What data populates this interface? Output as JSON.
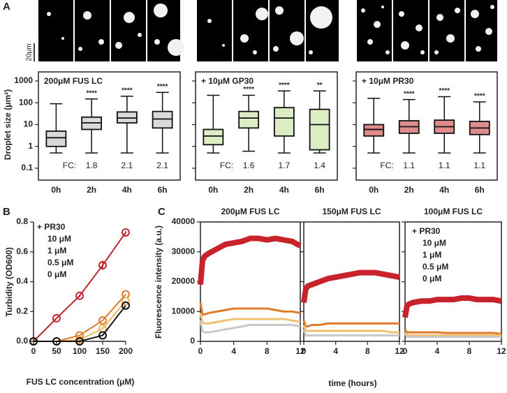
{
  "panel_labels": [
    "A",
    "B",
    "C"
  ],
  "scale_bar": "20μm",
  "chart_data": [
    {
      "type": "box",
      "title": "200μM FUS LC",
      "title_color": "#111111",
      "categories": [
        "0h",
        "2h",
        "4h",
        "6h"
      ],
      "ylabel": "Droplet size (μm²)",
      "log_y": true,
      "ylim": [
        0.1,
        1000
      ],
      "yticks": [
        0.1,
        1,
        10,
        100,
        1000
      ],
      "color": "#d9d9d9",
      "boxes": [
        [
          0.5,
          1.0,
          2.5,
          5,
          90
        ],
        [
          0.5,
          6,
          12,
          22,
          150
        ],
        [
          0.5,
          12,
          20,
          38,
          200
        ],
        [
          0.5,
          7,
          18,
          40,
          300
        ]
      ],
      "significance": [
        null,
        "****",
        "****",
        "****"
      ],
      "fc_label": "FC:",
      "fc": [
        null,
        1.8,
        2.1,
        2.1
      ]
    },
    {
      "type": "box",
      "title": "+ 10μM GP30",
      "title_color": "#2e7d32",
      "categories": [
        "0h",
        "2h",
        "4h",
        "6h"
      ],
      "log_y": true,
      "ylim": [
        0.1,
        1000
      ],
      "yticks": [
        0.1,
        1,
        10,
        100,
        1000
      ],
      "color": "#dcedc4",
      "boxes": [
        [
          0.5,
          1.2,
          3,
          6,
          220
        ],
        [
          0.6,
          7,
          20,
          40,
          220
        ],
        [
          0.5,
          3,
          20,
          60,
          350
        ],
        [
          0.5,
          0.7,
          10,
          50,
          350
        ]
      ],
      "significance": [
        null,
        "****",
        "****",
        "**"
      ],
      "fc_label": "FC:",
      "fc": [
        null,
        1.6,
        1.7,
        1.4
      ]
    },
    {
      "type": "box",
      "title": "+ 10μM PR30",
      "title_color": "#c0392b",
      "categories": [
        "0h",
        "2h",
        "4h",
        "6h"
      ],
      "log_y": true,
      "ylim": [
        0.1,
        1000
      ],
      "yticks": [
        0.1,
        1,
        10,
        100,
        1000
      ],
      "color": "#e08c8c",
      "boxes": [
        [
          0.5,
          3,
          6,
          10,
          160
        ],
        [
          0.5,
          4,
          8,
          15,
          140
        ],
        [
          0.5,
          4,
          8,
          16,
          190
        ],
        [
          0.5,
          3.5,
          7,
          14,
          110
        ]
      ],
      "significance": [
        null,
        "****",
        "****",
        "****"
      ],
      "fc_label": "FC:",
      "fc": [
        null,
        1.1,
        1.1,
        1.1
      ]
    },
    {
      "type": "line",
      "xlabel": "FUS LC concentration (μM)",
      "ylabel": "Turbidity (OD600)",
      "x": [
        0,
        50,
        100,
        150,
        200
      ],
      "xlim": [
        0,
        200
      ],
      "xticks": [
        0,
        50,
        100,
        150,
        200
      ],
      "ylim": [
        0,
        0.8
      ],
      "yticks": [
        {
          "value": 0,
          "label": "0.0"
        },
        0.2,
        0.4,
        0.6,
        0.8
      ],
      "markers": true,
      "legend_title": "+ PR30",
      "series": [
        {
          "name": "10 μM",
          "color": "#c0262d",
          "values": [
            0,
            0.155,
            0.305,
            0.51,
            0.73
          ],
          "errors": [
            0,
            0,
            0.01,
            0.03,
            0.01
          ]
        },
        {
          "name": "1 μM",
          "color": "#e07b2a",
          "values": [
            0,
            0,
            0.04,
            0.14,
            0.315
          ]
        },
        {
          "name": "0.5 μM",
          "color": "#f0b45c",
          "values": [
            0,
            0,
            0.01,
            0.085,
            0.27
          ]
        },
        {
          "name": "0 μM",
          "color": "#111111",
          "values": [
            0,
            0,
            0,
            0.04,
            0.24
          ]
        }
      ]
    },
    {
      "type": "line",
      "title": "200μM FUS LC",
      "ylabel": "Fluorescence intensity (a.u.)",
      "x": [
        0,
        0.25,
        0.5,
        1,
        2,
        3,
        4,
        5,
        6,
        7,
        8,
        9,
        10,
        11,
        12
      ],
      "xlim": [
        0,
        12
      ],
      "xticks": [
        0,
        4,
        8,
        12
      ],
      "ylim": [
        0,
        40000
      ],
      "yticks": [
        0,
        10000,
        20000,
        30000,
        40000
      ],
      "series": [
        {
          "color": "#c8232a",
          "values": [
            19000,
            27000,
            28500,
            29500,
            31000,
            32500,
            33000,
            33500,
            34500,
            34500,
            34000,
            34500,
            34000,
            33500,
            32000
          ]
        },
        {
          "color": "#e07b2a",
          "values": [
            13000,
            9000,
            9000,
            9500,
            10000,
            10500,
            11000,
            11000,
            11000,
            11000,
            11000,
            10500,
            10000,
            10000,
            9500
          ]
        },
        {
          "color": "#f0c070",
          "values": [
            9500,
            6500,
            6000,
            6000,
            6500,
            7000,
            7500,
            7500,
            7500,
            7500,
            7500,
            7500,
            7500,
            7000,
            6500
          ]
        },
        {
          "color": "#c8c8c8",
          "values": [
            7000,
            3500,
            3000,
            3000,
            3500,
            4000,
            4500,
            5000,
            5500,
            5500,
            5500,
            5500,
            5500,
            5500,
            5000
          ]
        }
      ]
    },
    {
      "type": "line",
      "title": "150μM FUS LC",
      "xlabel": "time (hours)",
      "x": [
        0,
        0.25,
        0.5,
        1,
        2,
        3,
        4,
        5,
        6,
        7,
        8,
        9,
        10,
        11,
        12
      ],
      "xlim": [
        0,
        12
      ],
      "xticks": [
        0,
        4,
        8,
        12
      ],
      "ylim": [
        0,
        40000
      ],
      "yticks": [
        0,
        10000,
        20000,
        30000,
        40000
      ],
      "series": [
        {
          "color": "#c8232a",
          "values": [
            13000,
            17500,
            18500,
            19000,
            20000,
            21000,
            21500,
            22000,
            22500,
            23000,
            23000,
            23000,
            22500,
            22000,
            21500
          ]
        },
        {
          "color": "#e07b2a",
          "values": [
            7000,
            5000,
            5000,
            5500,
            5500,
            6000,
            6000,
            6000,
            6000,
            6000,
            6000,
            6000,
            6000,
            6000,
            6000
          ]
        },
        {
          "color": "#f0c070",
          "values": [
            5500,
            3500,
            3500,
            3500,
            3500,
            3500,
            3500,
            3500,
            3500,
            3500,
            3500,
            3500,
            3500,
            3000,
            3000
          ]
        },
        {
          "color": "#c8c8c8",
          "values": [
            4000,
            2000,
            2000,
            2000,
            2000,
            2000,
            2000,
            2000,
            2000,
            2000,
            2000,
            2000,
            2000,
            2000,
            2000
          ]
        }
      ]
    },
    {
      "type": "line",
      "title": "100μM FUS LC",
      "x": [
        0,
        0.25,
        0.5,
        1,
        2,
        3,
        4,
        5,
        6,
        7,
        8,
        9,
        10,
        11,
        12
      ],
      "xlim": [
        0,
        12
      ],
      "xticks": [
        0,
        4,
        8,
        12
      ],
      "ylim": [
        0,
        40000
      ],
      "yticks": [
        0,
        10000,
        20000,
        30000,
        40000
      ],
      "legend_title": "+ PR30",
      "series": [
        {
          "name": "10 μM",
          "color": "#c8232a",
          "values": [
            8000,
            12000,
            12500,
            13000,
            13500,
            13500,
            14000,
            14000,
            14000,
            14500,
            14500,
            14000,
            14000,
            14000,
            13500
          ]
        },
        {
          "name": "1 μM",
          "color": "#e07b2a",
          "values": [
            4000,
            3000,
            3000,
            3000,
            3000,
            3000,
            3000,
            2800,
            2800,
            2800,
            2800,
            2800,
            2800,
            2800,
            2500
          ]
        },
        {
          "name": "0.5 μM",
          "color": "#f0c070",
          "values": [
            3000,
            2200,
            2000,
            2000,
            2000,
            2000,
            2000,
            2000,
            2000,
            2000,
            2000,
            2000,
            2000,
            2000,
            2000
          ]
        },
        {
          "name": "0 μM",
          "color": "#c8c8c8",
          "values": [
            2500,
            1500,
            1500,
            1500,
            1500,
            1500,
            1500,
            1500,
            1500,
            1500,
            1500,
            1500,
            1500,
            1500,
            1500
          ]
        }
      ]
    }
  ]
}
